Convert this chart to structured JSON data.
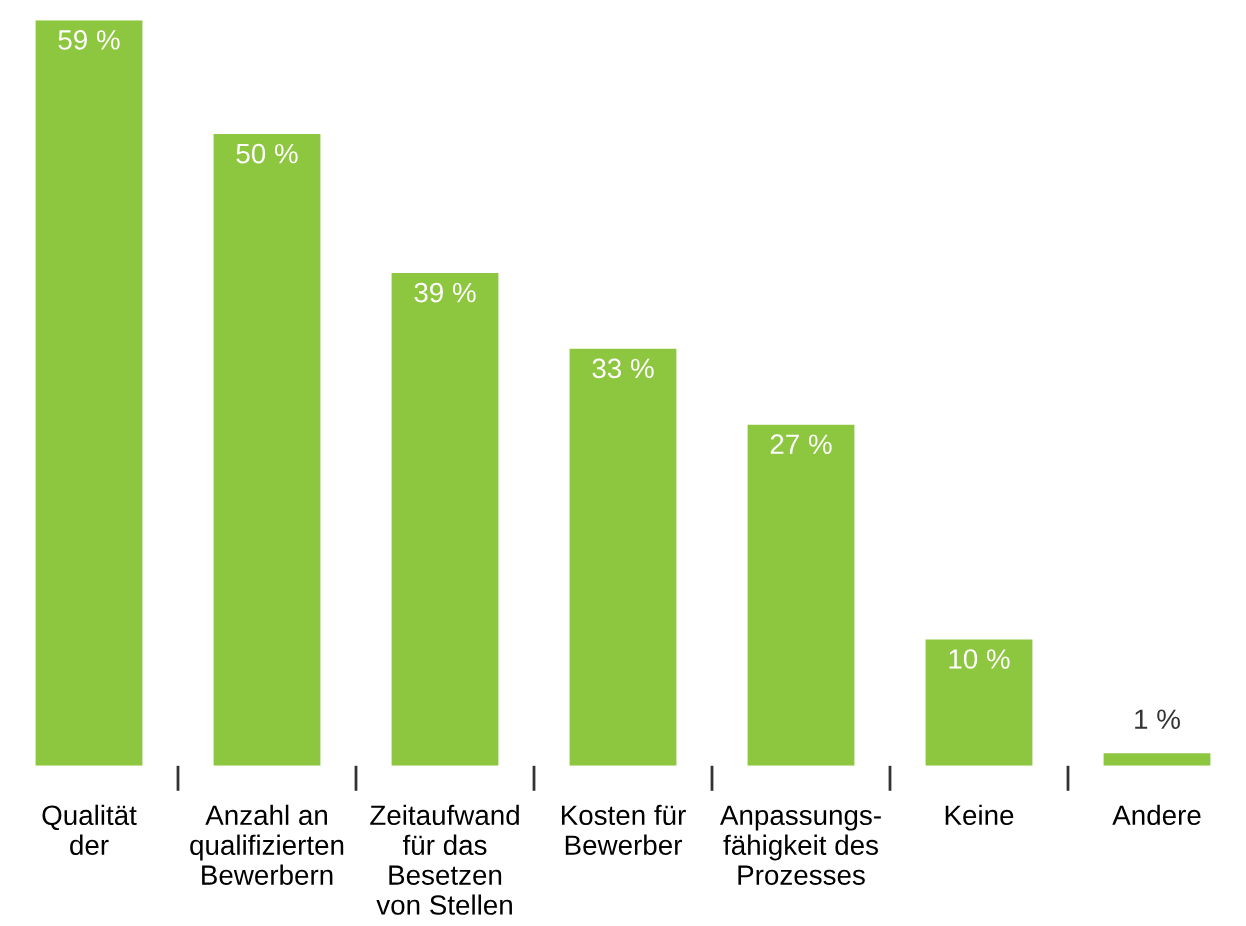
{
  "chart_data": {
    "type": "bar",
    "categories": [
      "Qualität\nder",
      "Anzahl an\nqualifizierten\nBewerbern",
      "Zeitaufwand\nfür das\nBesetzen\nvon Stellen",
      "Kosten für\nBewerber",
      "Anpassungs-\nfähigkeit des\nProzesses",
      "Keine",
      "Andere"
    ],
    "values": [
      59,
      50,
      39,
      33,
      27,
      10,
      1
    ],
    "value_labels": [
      "59 %",
      "50 %",
      "39 %",
      "33 %",
      "27 %",
      "10 %",
      "1 %"
    ],
    "color": "#8dc63f",
    "grid": false,
    "legend": false
  }
}
